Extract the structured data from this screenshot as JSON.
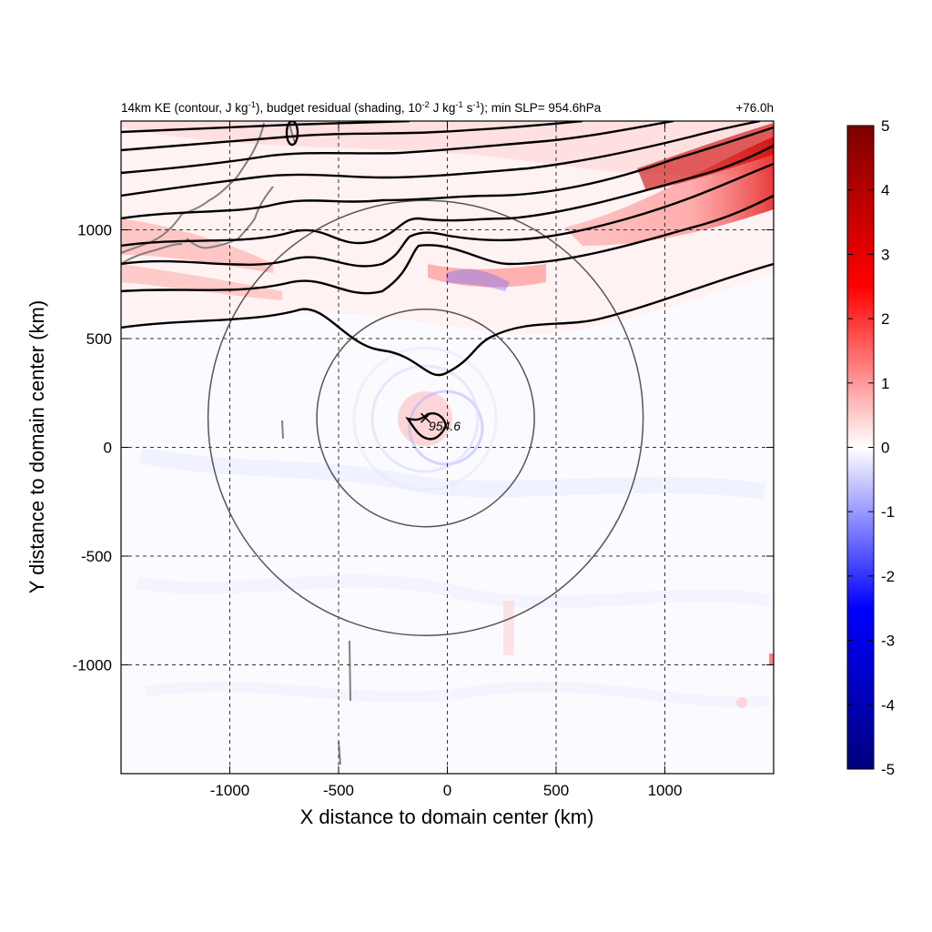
{
  "chart_data": {
    "type": "heatmap",
    "title_parts": {
      "a": "14km KE (contour, J kg",
      "a_sup": "-1",
      "b": "), budget residual (shading, 10",
      "b_sup": "-2",
      "c": " J kg",
      "c_sup": "-1",
      "d": " s",
      "d_sup": "-1",
      "e": "); min SLP= 954.6hPa"
    },
    "forecast_time": "+76.0h",
    "xlabel": "X distance to domain center (km)",
    "ylabel": "Y distance to domain center (km)",
    "xlim": [
      -1500,
      1500
    ],
    "ylim": [
      -1500,
      1500
    ],
    "xticks": [
      -1000,
      -500,
      0,
      500,
      1000
    ],
    "yticks": [
      -1000,
      -500,
      0,
      500,
      1000
    ],
    "xtick_labels": [
      "-1000",
      "-500",
      "0",
      "500",
      "1000"
    ],
    "ytick_labels": [
      "-1000",
      "-500",
      "0",
      "500",
      "1000"
    ],
    "grid": true,
    "colorbar": {
      "min": -5,
      "max": 5,
      "ticks": [
        5,
        4,
        3,
        2,
        1,
        0,
        -1,
        -2,
        -3,
        -4,
        -5
      ],
      "tick_labels": [
        "5",
        "4",
        "3",
        "2",
        "1",
        "0",
        "-1",
        "-2",
        "-3",
        "-4",
        "-5"
      ],
      "colors": {
        "max": "#7f0000",
        "high": "#ff0000",
        "mid": "#ffffff",
        "low": "#0000ff",
        "min": "#00007f"
      }
    },
    "storm_center": {
      "x": -100,
      "y": 135,
      "min_slp_label": "954.6"
    },
    "range_rings_km": [
      500,
      1000
    ],
    "ke_contour_levels_y_km": [
      620,
      730,
      840,
      950,
      1050,
      1150,
      1250,
      1340,
      1420
    ],
    "contour_color": "#000000",
    "ring_color": "#555555",
    "coast_color": "#808080"
  }
}
